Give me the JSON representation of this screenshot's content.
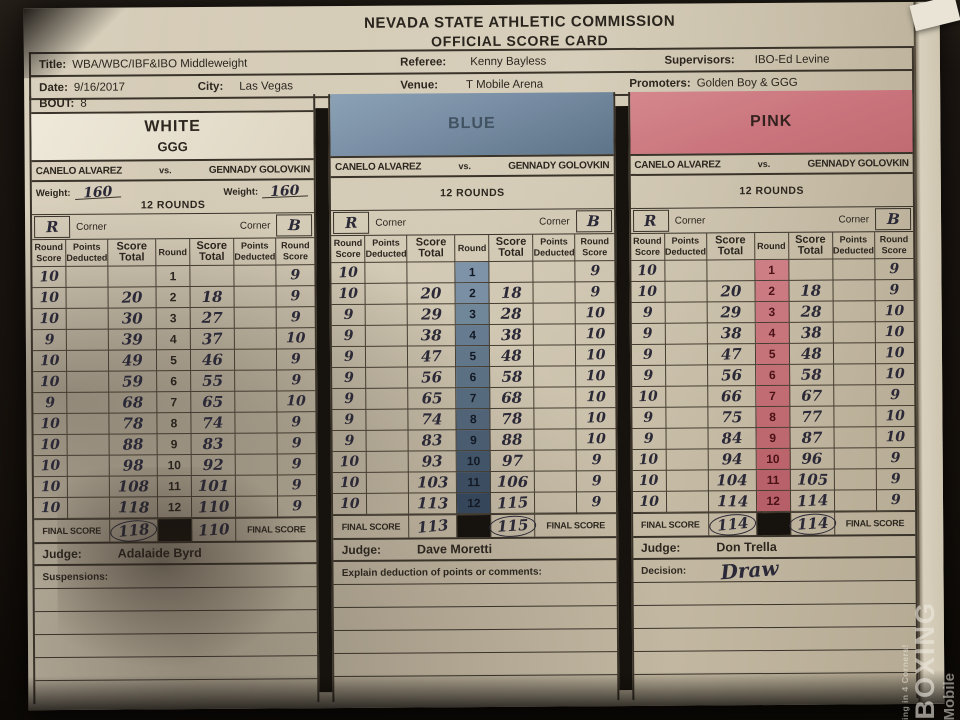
{
  "header": {
    "line1": "NEVADA STATE ATHLETIC COMMISSION",
    "line2": "OFFICIAL SCORE CARD"
  },
  "info": {
    "title_label": "Title:",
    "title": "WBA/WBC/IBF&IBO Middleweight",
    "referee_label": "Referee:",
    "referee": "Kenny Bayless",
    "supervisors_label": "Supervisors:",
    "supervisors": "IBO-Ed Levine",
    "date_label": "Date:",
    "date": "9/16/2017",
    "city_label": "City:",
    "city": "Las Vegas",
    "venue_label": "Venue:",
    "venue": "T Mobile Arena",
    "promoters_label": "Promoters:",
    "promoters": "Golden Boy & GGG",
    "bout_label": "BOUT:",
    "bout": "8"
  },
  "fight": {
    "fighter_left": "CANELO ALVAREZ",
    "vs": "vs.",
    "fighter_right": "GENNADY GOLOVKIN",
    "weight_label": "Weight:",
    "weight_left": "160",
    "weight_right": "160",
    "rounds_label": "12 ROUNDS"
  },
  "table": {
    "corner_left_mark": "R",
    "corner_label": "Corner",
    "corner_right_mark": "B",
    "col_headers": [
      [
        "Round",
        "Score"
      ],
      [
        "Points",
        "Deducted"
      ],
      [
        "Score",
        "Total"
      ],
      [
        "Round",
        ""
      ],
      [
        "Score",
        "Total"
      ],
      [
        "Points",
        "Deducted"
      ],
      [
        "Round",
        "Score"
      ]
    ],
    "final_score_label": "FINAL SCORE",
    "judge_label": "Judge:"
  },
  "judges": [
    {
      "corner": "white",
      "panel_title": "WHITE",
      "panel_sub": "GGG",
      "name": "Adalaide Byrd",
      "bottom_label": "Suspensions:",
      "decision": "",
      "final_left": "118",
      "final_left_circled": true,
      "final_right": "110",
      "final_right_circled": false,
      "rounds": [
        {
          "r": "1",
          "a": "10",
          "at": "",
          "bt": "",
          "b": "9"
        },
        {
          "r": "2",
          "a": "10",
          "at": "20",
          "bt": "18",
          "b": "9"
        },
        {
          "r": "3",
          "a": "10",
          "at": "30",
          "bt": "27",
          "b": "9"
        },
        {
          "r": "4",
          "a": "9",
          "at": "39",
          "bt": "37",
          "b": "10"
        },
        {
          "r": "5",
          "a": "10",
          "at": "49",
          "bt": "46",
          "b": "9"
        },
        {
          "r": "6",
          "a": "10",
          "at": "59",
          "bt": "55",
          "b": "9"
        },
        {
          "r": "7",
          "a": "9",
          "at": "68",
          "bt": "65",
          "b": "10"
        },
        {
          "r": "8",
          "a": "10",
          "at": "78",
          "bt": "74",
          "b": "9"
        },
        {
          "r": "9",
          "a": "10",
          "at": "88",
          "bt": "83",
          "b": "9"
        },
        {
          "r": "10",
          "a": "10",
          "at": "98",
          "bt": "92",
          "b": "9"
        },
        {
          "r": "11",
          "a": "10",
          "at": "108",
          "bt": "101",
          "b": "9"
        },
        {
          "r": "12",
          "a": "10",
          "at": "118",
          "bt": "110",
          "b": "9"
        }
      ]
    },
    {
      "corner": "blue",
      "panel_title": "BLUE",
      "panel_sub": "",
      "name": "Dave Moretti",
      "bottom_label": "Explain deduction of points or comments:",
      "decision": "",
      "final_left": "113",
      "final_left_circled": false,
      "final_right": "115",
      "final_right_circled": true,
      "rounds": [
        {
          "r": "1",
          "a": "10",
          "at": "",
          "bt": "",
          "b": "9"
        },
        {
          "r": "2",
          "a": "10",
          "at": "20",
          "bt": "18",
          "b": "9"
        },
        {
          "r": "3",
          "a": "9",
          "at": "29",
          "bt": "28",
          "b": "10"
        },
        {
          "r": "4",
          "a": "9",
          "at": "38",
          "bt": "38",
          "b": "10"
        },
        {
          "r": "5",
          "a": "9",
          "at": "47",
          "bt": "48",
          "b": "10"
        },
        {
          "r": "6",
          "a": "9",
          "at": "56",
          "bt": "58",
          "b": "10"
        },
        {
          "r": "7",
          "a": "9",
          "at": "65",
          "bt": "68",
          "b": "10"
        },
        {
          "r": "8",
          "a": "9",
          "at": "74",
          "bt": "78",
          "b": "10"
        },
        {
          "r": "9",
          "a": "9",
          "at": "83",
          "bt": "88",
          "b": "10"
        },
        {
          "r": "10",
          "a": "10",
          "at": "93",
          "bt": "97",
          "b": "9"
        },
        {
          "r": "11",
          "a": "10",
          "at": "103",
          "bt": "106",
          "b": "9"
        },
        {
          "r": "12",
          "a": "10",
          "at": "113",
          "bt": "115",
          "b": "9"
        }
      ]
    },
    {
      "corner": "pink",
      "panel_title": "PINK",
      "panel_sub": "",
      "name": "Don Trella",
      "bottom_label": "Decision:",
      "decision": "Draw",
      "final_left": "114",
      "final_left_circled": true,
      "final_right": "114",
      "final_right_circled": true,
      "rounds": [
        {
          "r": "1",
          "a": "10",
          "at": "",
          "bt": "",
          "b": "9"
        },
        {
          "r": "2",
          "a": "10",
          "at": "20",
          "bt": "18",
          "b": "9"
        },
        {
          "r": "3",
          "a": "9",
          "at": "29",
          "bt": "28",
          "b": "10"
        },
        {
          "r": "4",
          "a": "9",
          "at": "38",
          "bt": "38",
          "b": "10"
        },
        {
          "r": "5",
          "a": "9",
          "at": "47",
          "bt": "48",
          "b": "10"
        },
        {
          "r": "6",
          "a": "9",
          "at": "56",
          "bt": "58",
          "b": "10"
        },
        {
          "r": "7",
          "a": "10",
          "at": "66",
          "bt": "67",
          "b": "9"
        },
        {
          "r": "8",
          "a": "9",
          "at": "75",
          "bt": "77",
          "b": "10"
        },
        {
          "r": "9",
          "a": "9",
          "at": "84",
          "bt": "87",
          "b": "10"
        },
        {
          "r": "10",
          "a": "10",
          "at": "94",
          "bt": "96",
          "b": "9"
        },
        {
          "r": "11",
          "a": "10",
          "at": "104",
          "bt": "105",
          "b": "9"
        },
        {
          "r": "12",
          "a": "10",
          "at": "114",
          "bt": "114",
          "b": "9"
        }
      ]
    }
  ],
  "watermark": {
    "line1": "BOXING",
    "line2": "Mobile",
    "tagline": "ing in 4 Corners!"
  },
  "colors": {
    "blue_panel": "#7b90a6",
    "pink_panel": "#cb767e",
    "black_bar": "#16120d",
    "ink": "#2b2937"
  }
}
